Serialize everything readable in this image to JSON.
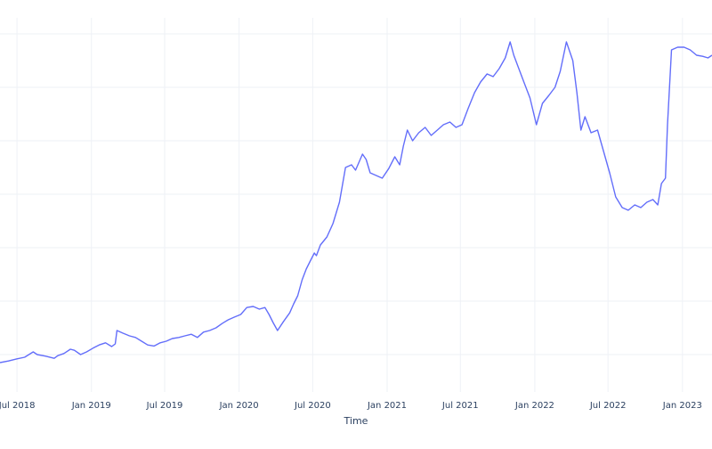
{
  "chart_data": {
    "type": "line",
    "title": "",
    "xlabel": "Time",
    "ylabel": "",
    "grid": true,
    "legend": "none",
    "line_color": "#636efa",
    "xlim": [
      "2018-05-20",
      "2023-03-15"
    ],
    "ylim": [
      0.3,
      7.3
    ],
    "x_ticks": [
      {
        "date": "2018-07-01",
        "label": "Jul 2018"
      },
      {
        "date": "2019-01-01",
        "label": "Jan 2019"
      },
      {
        "date": "2019-07-01",
        "label": "Jul 2019"
      },
      {
        "date": "2020-01-01",
        "label": "Jan 2020"
      },
      {
        "date": "2020-07-01",
        "label": "Jul 2020"
      },
      {
        "date": "2021-01-01",
        "label": "Jan 2021"
      },
      {
        "date": "2021-07-01",
        "label": "Jul 2021"
      },
      {
        "date": "2022-01-01",
        "label": "Jan 2022"
      },
      {
        "date": "2022-07-01",
        "label": "Jul 2022"
      },
      {
        "date": "2023-01-01",
        "label": "Jan 2023"
      }
    ],
    "y_gridlines": [
      1,
      2,
      3,
      4,
      5,
      6,
      7
    ],
    "series": [
      {
        "x": [
          "2018-05-20",
          "2018-06-10",
          "2018-07-01",
          "2018-07-20",
          "2018-08-10",
          "2018-08-20",
          "2018-09-10",
          "2018-10-01",
          "2018-10-10",
          "2018-10-25",
          "2018-11-10",
          "2018-11-20",
          "2018-12-05",
          "2018-12-20",
          "2019-01-05",
          "2019-01-20",
          "2019-02-05",
          "2019-02-20",
          "2019-03-01",
          "2019-03-05",
          "2019-03-20",
          "2019-04-05",
          "2019-04-20",
          "2019-05-05",
          "2019-05-20",
          "2019-06-05",
          "2019-06-20",
          "2019-07-05",
          "2019-07-20",
          "2019-08-05",
          "2019-08-20",
          "2019-09-05",
          "2019-09-20",
          "2019-10-05",
          "2019-10-20",
          "2019-11-05",
          "2019-11-20",
          "2019-12-05",
          "2019-12-20",
          "2020-01-05",
          "2020-01-20",
          "2020-02-05",
          "2020-02-20",
          "2020-03-05",
          "2020-03-15",
          "2020-03-25",
          "2020-04-05",
          "2020-04-20",
          "2020-05-05",
          "2020-05-15",
          "2020-05-25",
          "2020-06-05",
          "2020-06-15",
          "2020-06-25",
          "2020-07-05",
          "2020-07-10",
          "2020-07-20",
          "2020-08-05",
          "2020-08-20",
          "2020-09-05",
          "2020-09-20",
          "2020-10-05",
          "2020-10-15",
          "2020-11-01",
          "2020-11-10",
          "2020-11-20",
          "2020-12-05",
          "2020-12-20",
          "2021-01-05",
          "2021-01-20",
          "2021-02-01",
          "2021-02-10",
          "2021-02-20",
          "2021-03-05",
          "2021-03-20",
          "2021-04-05",
          "2021-04-20",
          "2021-05-05",
          "2021-05-20",
          "2021-06-05",
          "2021-06-20",
          "2021-07-05",
          "2021-07-20",
          "2021-08-05",
          "2021-08-20",
          "2021-09-05",
          "2021-09-20",
          "2021-10-05",
          "2021-10-20",
          "2021-11-01",
          "2021-11-10",
          "2021-11-20",
          "2021-12-05",
          "2021-12-20",
          "2022-01-05",
          "2022-01-20",
          "2022-02-05",
          "2022-02-20",
          "2022-03-05",
          "2022-03-20",
          "2022-04-05",
          "2022-04-15",
          "2022-04-25",
          "2022-05-05",
          "2022-05-20",
          "2022-06-05",
          "2022-06-20",
          "2022-07-05",
          "2022-07-20",
          "2022-08-05",
          "2022-08-20",
          "2022-09-05",
          "2022-09-20",
          "2022-10-05",
          "2022-10-20",
          "2022-11-01",
          "2022-11-10",
          "2022-11-20",
          "2022-11-25",
          "2022-12-05",
          "2022-12-20",
          "2023-01-05",
          "2023-01-20",
          "2023-02-05",
          "2023-02-20",
          "2023-03-05",
          "2023-03-15"
        ],
        "y": [
          0.85,
          0.88,
          0.92,
          0.95,
          1.05,
          1.0,
          0.97,
          0.93,
          0.98,
          1.02,
          1.1,
          1.08,
          1.0,
          1.05,
          1.12,
          1.18,
          1.22,
          1.15,
          1.2,
          1.45,
          1.4,
          1.35,
          1.32,
          1.25,
          1.18,
          1.16,
          1.22,
          1.25,
          1.3,
          1.32,
          1.35,
          1.38,
          1.32,
          1.42,
          1.45,
          1.5,
          1.58,
          1.65,
          1.7,
          1.75,
          1.88,
          1.9,
          1.85,
          1.88,
          1.75,
          1.6,
          1.45,
          1.62,
          1.78,
          1.95,
          2.1,
          2.4,
          2.6,
          2.75,
          2.9,
          2.85,
          3.05,
          3.2,
          3.45,
          3.85,
          4.5,
          4.55,
          4.45,
          4.75,
          4.65,
          4.4,
          4.35,
          4.3,
          4.48,
          4.7,
          4.55,
          4.9,
          5.2,
          5.0,
          5.15,
          5.25,
          5.1,
          5.2,
          5.3,
          5.35,
          5.25,
          5.3,
          5.6,
          5.9,
          6.1,
          6.25,
          6.2,
          6.35,
          6.55,
          6.85,
          6.6,
          6.4,
          6.1,
          5.8,
          5.3,
          5.7,
          5.85,
          6.0,
          6.3,
          6.85,
          6.5,
          5.9,
          5.2,
          5.45,
          5.15,
          5.2,
          4.8,
          4.4,
          3.95,
          3.75,
          3.7,
          3.8,
          3.75,
          3.85,
          3.9,
          3.8,
          4.2,
          4.3,
          5.3,
          6.7,
          6.75,
          6.75,
          6.7,
          6.6,
          6.58,
          6.55,
          6.6
        ]
      }
    ]
  }
}
